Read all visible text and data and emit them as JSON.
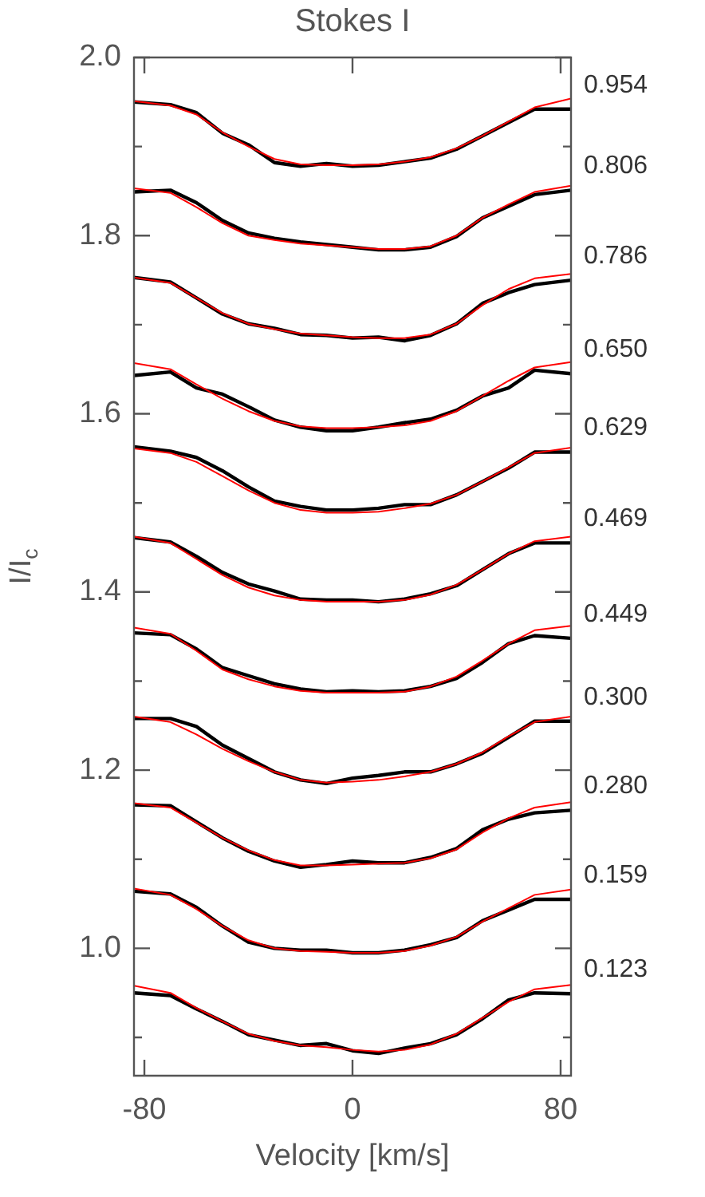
{
  "chart_data": {
    "type": "line",
    "title": "Stokes I",
    "xlabel": "Velocity [km/s]",
    "ylabel": "I/I$_{c}$",
    "marker": "none",
    "x": [
      -84,
      -70,
      -60,
      -50,
      -40,
      -30,
      -20,
      -10,
      0,
      10,
      20,
      30,
      40,
      50,
      60,
      70,
      84
    ],
    "xlim": [
      -84,
      84
    ],
    "xticks": [
      -80,
      0,
      80
    ],
    "ylim": [
      0.857,
      2.0
    ],
    "yticks": [
      {
        "value": 0.9,
        "label": null
      },
      {
        "value": 1,
        "label": "1.0"
      },
      {
        "value": 1.1,
        "label": null
      },
      {
        "value": 1.2,
        "label": "1.2"
      },
      {
        "value": 1.3,
        "label": null
      },
      {
        "value": 1.4,
        "label": "1.4"
      },
      {
        "value": 1.5,
        "label": null
      },
      {
        "value": 1.6,
        "label": "1.6"
      },
      {
        "value": 1.7,
        "label": null
      },
      {
        "value": 1.8,
        "label": "1.8"
      },
      {
        "value": 1.9,
        "label": null
      },
      {
        "value": 2,
        "label": "2.0"
      }
    ],
    "series": [
      {
        "name": "0.954",
        "color": "#000000",
        "values": [
          1.95,
          1.947,
          1.938,
          1.915,
          1.902,
          1.882,
          1.878,
          1.881,
          1.878,
          1.879,
          1.883,
          1.887,
          1.897,
          1.912,
          1.927,
          1.942,
          1.942
        ]
      },
      {
        "color": "#ff0000",
        "values": [
          1.951,
          1.946,
          1.936,
          1.916,
          1.9,
          1.886,
          1.88,
          1.879,
          1.879,
          1.88,
          1.883,
          1.888,
          1.898,
          1.912,
          1.928,
          1.944,
          1.954
        ]
      },
      {
        "name": "0.806",
        "color": "#000000",
        "values": [
          1.849,
          1.851,
          1.837,
          1.817,
          1.803,
          1.797,
          1.793,
          1.79,
          1.787,
          1.784,
          1.784,
          1.787,
          1.799,
          1.82,
          1.833,
          1.846,
          1.851
        ]
      },
      {
        "color": "#ff0000",
        "values": [
          1.853,
          1.848,
          1.832,
          1.814,
          1.8,
          1.795,
          1.791,
          1.789,
          1.787,
          1.785,
          1.785,
          1.788,
          1.8,
          1.82,
          1.835,
          1.849,
          1.856
        ]
      },
      {
        "name": "0.786",
        "color": "#000000",
        "values": [
          1.753,
          1.748,
          1.73,
          1.712,
          1.701,
          1.696,
          1.689,
          1.688,
          1.685,
          1.686,
          1.682,
          1.688,
          1.701,
          1.724,
          1.736,
          1.745,
          1.75
        ]
      },
      {
        "color": "#ff0000",
        "values": [
          1.753,
          1.747,
          1.73,
          1.713,
          1.701,
          1.695,
          1.69,
          1.688,
          1.686,
          1.685,
          1.685,
          1.689,
          1.701,
          1.722,
          1.74,
          1.752,
          1.757
        ]
      },
      {
        "name": "0.650",
        "color": "#000000",
        "values": [
          1.643,
          1.647,
          1.629,
          1.622,
          1.608,
          1.593,
          1.585,
          1.581,
          1.581,
          1.585,
          1.59,
          1.594,
          1.604,
          1.62,
          1.629,
          1.649,
          1.645
        ]
      },
      {
        "color": "#ff0000",
        "values": [
          1.657,
          1.65,
          1.633,
          1.617,
          1.603,
          1.592,
          1.586,
          1.584,
          1.584,
          1.585,
          1.587,
          1.592,
          1.603,
          1.62,
          1.637,
          1.652,
          1.658
        ]
      },
      {
        "name": "0.629",
        "color": "#000000",
        "values": [
          1.563,
          1.558,
          1.551,
          1.536,
          1.518,
          1.502,
          1.496,
          1.492,
          1.492,
          1.494,
          1.498,
          1.498,
          1.509,
          1.524,
          1.539,
          1.557,
          1.557
        ]
      },
      {
        "color": "#ff0000",
        "values": [
          1.561,
          1.556,
          1.546,
          1.53,
          1.514,
          1.5,
          1.492,
          1.489,
          1.489,
          1.49,
          1.494,
          1.499,
          1.509,
          1.524,
          1.54,
          1.556,
          1.562
        ]
      },
      {
        "name": "0.469",
        "color": "#000000",
        "values": [
          1.461,
          1.456,
          1.44,
          1.422,
          1.409,
          1.401,
          1.392,
          1.391,
          1.391,
          1.389,
          1.392,
          1.398,
          1.407,
          1.425,
          1.443,
          1.455,
          1.455
        ]
      },
      {
        "color": "#ff0000",
        "values": [
          1.462,
          1.455,
          1.437,
          1.419,
          1.405,
          1.396,
          1.391,
          1.389,
          1.389,
          1.389,
          1.391,
          1.397,
          1.408,
          1.425,
          1.443,
          1.457,
          1.462
        ]
      },
      {
        "name": "0.449",
        "color": "#000000",
        "values": [
          1.354,
          1.352,
          1.336,
          1.315,
          1.306,
          1.297,
          1.291,
          1.288,
          1.289,
          1.288,
          1.289,
          1.294,
          1.303,
          1.321,
          1.342,
          1.351,
          1.348
        ]
      },
      {
        "color": "#ff0000",
        "values": [
          1.36,
          1.353,
          1.334,
          1.313,
          1.302,
          1.294,
          1.289,
          1.287,
          1.287,
          1.287,
          1.288,
          1.294,
          1.305,
          1.323,
          1.342,
          1.357,
          1.362
        ]
      },
      {
        "name": "0.300",
        "color": "#000000",
        "values": [
          1.258,
          1.258,
          1.249,
          1.228,
          1.213,
          1.198,
          1.189,
          1.185,
          1.191,
          1.194,
          1.198,
          1.198,
          1.207,
          1.219,
          1.237,
          1.255,
          1.255
        ]
      },
      {
        "color": "#ff0000",
        "values": [
          1.26,
          1.254,
          1.24,
          1.224,
          1.21,
          1.198,
          1.189,
          1.186,
          1.187,
          1.189,
          1.193,
          1.198,
          1.207,
          1.22,
          1.238,
          1.254,
          1.26
        ]
      },
      {
        "name": "0.280",
        "color": "#000000",
        "values": [
          1.161,
          1.16,
          1.142,
          1.124,
          1.109,
          1.098,
          1.091,
          1.094,
          1.098,
          1.096,
          1.096,
          1.102,
          1.112,
          1.133,
          1.145,
          1.152,
          1.155
        ]
      },
      {
        "color": "#ff0000",
        "values": [
          1.163,
          1.158,
          1.141,
          1.124,
          1.11,
          1.099,
          1.093,
          1.093,
          1.094,
          1.095,
          1.096,
          1.101,
          1.111,
          1.13,
          1.146,
          1.158,
          1.164
        ]
      },
      {
        "name": "0.159",
        "color": "#000000",
        "values": [
          1.064,
          1.061,
          1.046,
          1.025,
          1.007,
          1.0,
          0.998,
          0.998,
          0.995,
          0.995,
          0.998,
          1.004,
          1.012,
          1.031,
          1.043,
          1.055,
          1.055
        ]
      },
      {
        "color": "#ff0000",
        "values": [
          1.067,
          1.06,
          1.044,
          1.025,
          1.009,
          1.0,
          0.997,
          0.996,
          0.995,
          0.995,
          0.997,
          1.003,
          1.013,
          1.03,
          1.045,
          1.06,
          1.066
        ]
      },
      {
        "name": "0.123",
        "color": "#000000",
        "values": [
          0.95,
          0.947,
          0.932,
          0.918,
          0.903,
          0.897,
          0.891,
          0.893,
          0.885,
          0.882,
          0.888,
          0.893,
          0.903,
          0.921,
          0.942,
          0.95,
          0.949
        ]
      },
      {
        "color": "#ff0000",
        "values": [
          0.958,
          0.95,
          0.933,
          0.918,
          0.904,
          0.896,
          0.891,
          0.889,
          0.886,
          0.884,
          0.886,
          0.892,
          0.904,
          0.922,
          0.94,
          0.954,
          0.959
        ]
      }
    ]
  }
}
